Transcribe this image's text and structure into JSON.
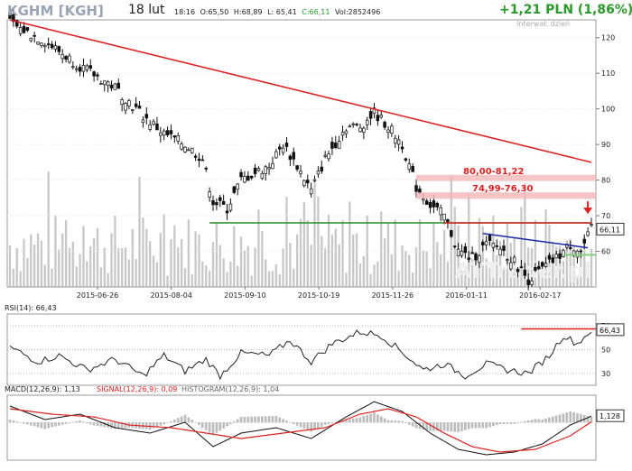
{
  "header": {
    "ticker": "KGHM [KGH]",
    "date": "18 lut",
    "time": "18:16",
    "open": "O:65,50",
    "high": "H:68,89",
    "low": "L: 65,41",
    "close": "C:66,11",
    "volume": "Vol:2852496",
    "change": "+1,21 PLN (1,86%)",
    "interval": "Interwał: dzień"
  },
  "watermark": "ATTrader.pl",
  "colors": {
    "up": "#2a9a2a",
    "trend_red": "#e02020",
    "support_green": "#2a8a2a",
    "blue_line": "#1a2aa8",
    "zone": "#f4b8b8",
    "volume": "#c8c8c8",
    "rsi_line": "#222222",
    "macd_line": "#111111",
    "signal_line": "#e02020",
    "histogram": "#bdbdbd"
  },
  "chart_data": [
    {
      "type": "candlestick",
      "y_axis_ticks": [
        "120",
        "110",
        "100",
        "90",
        "80",
        "70",
        "60"
      ],
      "ylim": [
        50,
        125
      ],
      "x_tick_labels": [
        "2015-06-26",
        "2015-08-04",
        "2015-09-10",
        "2015-10-19",
        "2015-11-26",
        "2016-01-11",
        "2016-02-17"
      ],
      "last_price_label": "66,11",
      "zones": [
        {
          "label": "80,00-81,22",
          "from": 80.0,
          "to": 81.22
        },
        {
          "label": "74,99-76,30",
          "from": 74.99,
          "to": 76.3
        }
      ],
      "close_anchors": [
        {
          "index": 0,
          "value": 124
        },
        {
          "index": 10,
          "value": 119
        },
        {
          "index": 20,
          "value": 112
        },
        {
          "index": 30,
          "value": 106
        },
        {
          "index": 38,
          "value": 98
        },
        {
          "index": 44,
          "value": 93
        },
        {
          "index": 50,
          "value": 90
        },
        {
          "index": 55,
          "value": 86
        },
        {
          "index": 58,
          "value": 74
        },
        {
          "index": 62,
          "value": 72
        },
        {
          "index": 66,
          "value": 80
        },
        {
          "index": 70,
          "value": 82
        },
        {
          "index": 74,
          "value": 84
        },
        {
          "index": 78,
          "value": 90
        },
        {
          "index": 82,
          "value": 84
        },
        {
          "index": 86,
          "value": 77
        },
        {
          "index": 90,
          "value": 86
        },
        {
          "index": 96,
          "value": 95
        },
        {
          "index": 100,
          "value": 95
        },
        {
          "index": 104,
          "value": 99
        },
        {
          "index": 108,
          "value": 95
        },
        {
          "index": 112,
          "value": 90
        },
        {
          "index": 116,
          "value": 78
        },
        {
          "index": 120,
          "value": 73
        },
        {
          "index": 124,
          "value": 70
        },
        {
          "index": 128,
          "value": 60
        },
        {
          "index": 132,
          "value": 58
        },
        {
          "index": 136,
          "value": 62
        },
        {
          "index": 140,
          "value": 61
        },
        {
          "index": 144,
          "value": 57
        },
        {
          "index": 148,
          "value": 52
        },
        {
          "index": 152,
          "value": 55
        },
        {
          "index": 156,
          "value": 58
        },
        {
          "index": 160,
          "value": 62
        },
        {
          "index": 163,
          "value": 60
        },
        {
          "index": 166,
          "value": 66.11
        }
      ],
      "trend_lines": [
        {
          "name": "red-downtrend",
          "from": {
            "index": 0,
            "value": 125
          },
          "to": {
            "index": 166,
            "value": 85
          }
        },
        {
          "name": "green-support",
          "from": {
            "index": 57,
            "value": 68
          },
          "to": {
            "index": 166,
            "value": 68
          }
        },
        {
          "name": "red-resistance",
          "from": {
            "index": 124,
            "value": 68
          },
          "to": {
            "index": 166,
            "value": 68
          }
        },
        {
          "name": "blue-line",
          "from": {
            "index": 135,
            "value": 65
          },
          "to": {
            "index": 165,
            "value": 61
          }
        }
      ]
    },
    {
      "type": "line",
      "title": "RSI(14): 66,43",
      "y_axis_ticks": [
        "70",
        "50",
        "30"
      ],
      "ylim": [
        20,
        80
      ],
      "last_value_label": "66,43",
      "anchors": [
        {
          "index": 0,
          "value": 52
        },
        {
          "index": 8,
          "value": 40
        },
        {
          "index": 14,
          "value": 45
        },
        {
          "index": 22,
          "value": 33
        },
        {
          "index": 30,
          "value": 42
        },
        {
          "index": 38,
          "value": 28
        },
        {
          "index": 44,
          "value": 45
        },
        {
          "index": 50,
          "value": 32
        },
        {
          "index": 56,
          "value": 42
        },
        {
          "index": 60,
          "value": 28
        },
        {
          "index": 66,
          "value": 47
        },
        {
          "index": 74,
          "value": 45
        },
        {
          "index": 80,
          "value": 58
        },
        {
          "index": 86,
          "value": 40
        },
        {
          "index": 92,
          "value": 55
        },
        {
          "index": 100,
          "value": 65
        },
        {
          "index": 106,
          "value": 62
        },
        {
          "index": 112,
          "value": 48
        },
        {
          "index": 118,
          "value": 33
        },
        {
          "index": 124,
          "value": 38
        },
        {
          "index": 130,
          "value": 28
        },
        {
          "index": 136,
          "value": 38
        },
        {
          "index": 142,
          "value": 33
        },
        {
          "index": 148,
          "value": 30
        },
        {
          "index": 154,
          "value": 45
        },
        {
          "index": 158,
          "value": 62
        },
        {
          "index": 162,
          "value": 55
        },
        {
          "index": 166,
          "value": 66.43
        }
      ]
    },
    {
      "type": "line",
      "title": "MACD(12,26,9): 1,13",
      "signal_title": "SIGNAL(12,26,9): 0,09",
      "histogram_title": "HISTOGRAM(12,26,9): 1,04",
      "last_value_label": "1,128",
      "ylim": [
        -7,
        5
      ],
      "macd_anchors": [
        {
          "index": 0,
          "value": 3
        },
        {
          "index": 10,
          "value": 0.5
        },
        {
          "index": 20,
          "value": 1.5
        },
        {
          "index": 30,
          "value": -1
        },
        {
          "index": 40,
          "value": -2
        },
        {
          "index": 50,
          "value": 0
        },
        {
          "index": 58,
          "value": -4.5
        },
        {
          "index": 66,
          "value": -2
        },
        {
          "index": 76,
          "value": -1
        },
        {
          "index": 86,
          "value": -3
        },
        {
          "index": 96,
          "value": 1
        },
        {
          "index": 104,
          "value": 3.8
        },
        {
          "index": 112,
          "value": 2
        },
        {
          "index": 120,
          "value": -2
        },
        {
          "index": 128,
          "value": -5
        },
        {
          "index": 136,
          "value": -6
        },
        {
          "index": 144,
          "value": -5.5
        },
        {
          "index": 152,
          "value": -4
        },
        {
          "index": 160,
          "value": -0.5
        },
        {
          "index": 166,
          "value": 1.13
        }
      ],
      "signal_anchors": [
        {
          "index": 0,
          "value": 2.5
        },
        {
          "index": 12,
          "value": 1.5
        },
        {
          "index": 24,
          "value": 1
        },
        {
          "index": 34,
          "value": -0.5
        },
        {
          "index": 46,
          "value": -1
        },
        {
          "index": 56,
          "value": -2
        },
        {
          "index": 66,
          "value": -3
        },
        {
          "index": 78,
          "value": -2
        },
        {
          "index": 90,
          "value": -1
        },
        {
          "index": 100,
          "value": 1.5
        },
        {
          "index": 108,
          "value": 2.5
        },
        {
          "index": 116,
          "value": 1
        },
        {
          "index": 124,
          "value": -2
        },
        {
          "index": 132,
          "value": -4.5
        },
        {
          "index": 140,
          "value": -5.5
        },
        {
          "index": 150,
          "value": -5
        },
        {
          "index": 160,
          "value": -2.5
        },
        {
          "index": 166,
          "value": 0.09
        }
      ]
    }
  ]
}
